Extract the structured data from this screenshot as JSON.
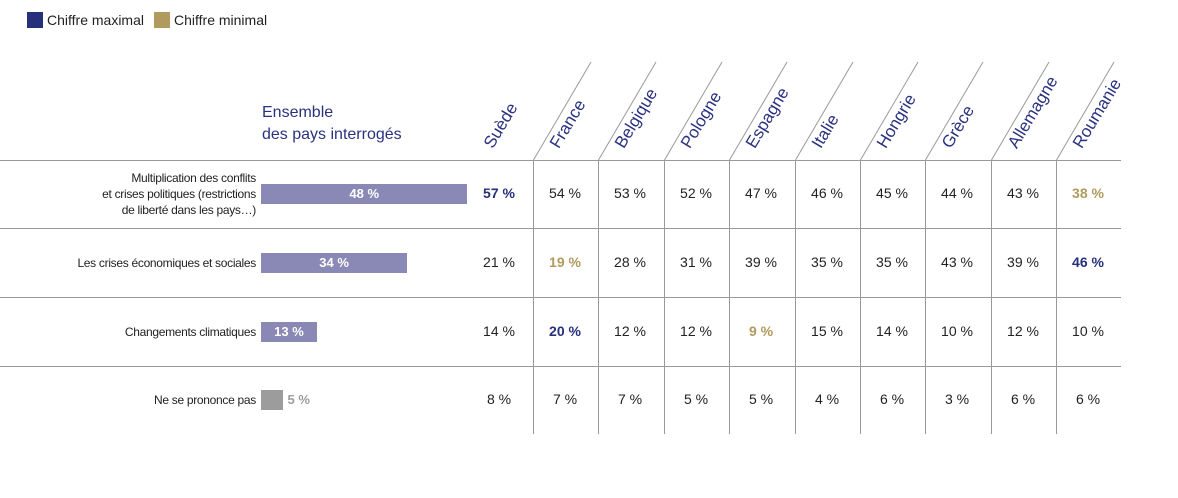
{
  "legend": [
    {
      "label": "Chiffre maximal",
      "color": "#27307a"
    },
    {
      "label": "Chiffre minimal",
      "color": "#b09a5e"
    }
  ],
  "overall_label_line1": "Ensemble",
  "overall_label_line2": "des pays interrogés",
  "colors": {
    "bar": "#8a88b4",
    "bar_na": "#9c9c9c",
    "max": "#27307a",
    "min": "#b09a5e"
  },
  "chart_data": {
    "type": "table",
    "countries": [
      "Suède",
      "France",
      "Belgique",
      "Pologne",
      "Espagne",
      "Italie",
      "Hongrie",
      "Grèce",
      "Allemagne",
      "Roumanie"
    ],
    "rows": [
      {
        "label_lines": [
          "Multiplication des conflits",
          "et crises politiques (restrictions",
          "de liberté dans les pays…)"
        ],
        "overall": 48,
        "overall_label": "48 %",
        "values": [
          57,
          54,
          53,
          52,
          47,
          46,
          45,
          44,
          43,
          38
        ],
        "labels": [
          "57 %",
          "54 %",
          "53 %",
          "52 %",
          "47 %",
          "46 %",
          "45 %",
          "44 %",
          "43 %",
          "38 %"
        ],
        "max_index": 0,
        "min_index": 9
      },
      {
        "label_lines": [
          "Les crises économiques et sociales"
        ],
        "overall": 34,
        "overall_label": "34 %",
        "values": [
          21,
          19,
          28,
          31,
          39,
          35,
          35,
          43,
          39,
          46
        ],
        "labels": [
          "21 %",
          "19 %",
          "28 %",
          "31 %",
          "39 %",
          "35 %",
          "35 %",
          "43 %",
          "39 %",
          "46 %"
        ],
        "max_index": 9,
        "min_index": 1
      },
      {
        "label_lines": [
          "Changements climatiques"
        ],
        "overall": 13,
        "overall_label": "13 %",
        "values": [
          14,
          20,
          12,
          12,
          9,
          15,
          14,
          10,
          12,
          10
        ],
        "labels": [
          "14 %",
          "20 %",
          "12 %",
          "12 %",
          "9 %",
          "15 %",
          "14 %",
          "10 %",
          "12 %",
          "10 %"
        ],
        "max_index": 1,
        "min_index": 4
      },
      {
        "label_lines": [
          "Ne se prononce pas"
        ],
        "overall": 5,
        "overall_label": "5 %",
        "values": [
          8,
          7,
          7,
          5,
          5,
          4,
          6,
          3,
          6,
          6
        ],
        "labels": [
          "8 %",
          "7 %",
          "7 %",
          "5 %",
          "5 %",
          "4 %",
          "6 %",
          "3 %",
          "6 %",
          "6 %"
        ],
        "max_index": null,
        "min_index": null,
        "na": true
      }
    ]
  }
}
